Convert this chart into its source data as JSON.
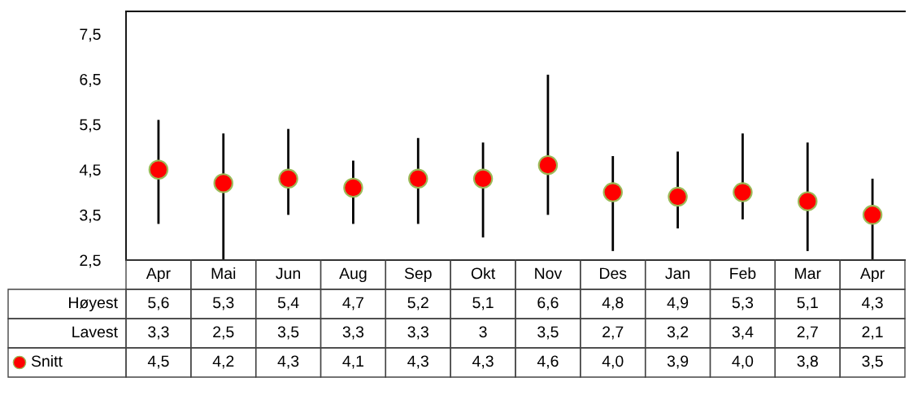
{
  "chart_data": {
    "type": "scatter",
    "categories": [
      "Apr",
      "Mai",
      "Jun",
      "Aug",
      "Sep",
      "Okt",
      "Nov",
      "Des",
      "Jan",
      "Feb",
      "Mar",
      "Apr"
    ],
    "series": [
      {
        "name": "Høyest",
        "type": "other",
        "values": [
          null,
          null,
          null,
          null,
          null,
          null,
          null,
          null,
          null,
          null,
          null,
          null
        ],
        "value_labels": [
          "5,6",
          "5,3",
          "5,4",
          "4,7",
          "5,2",
          "5,1",
          "6,6",
          "4,8",
          "4,9",
          "5,3",
          "5,1",
          "4,3"
        ]
      },
      {
        "name": "Lavest",
        "type": "other",
        "values": [
          null,
          null,
          null,
          null,
          null,
          null,
          null,
          null,
          null,
          null,
          null,
          null
        ],
        "value_labels": [
          "3,3",
          "2,5",
          "3,5",
          "3,3",
          "3,3",
          "3",
          "3,5",
          "2,7",
          "3,2",
          "3,4",
          "2,7",
          "2,1"
        ]
      },
      {
        "name": "Snitt",
        "color": "#ff0000",
        "values": [
          4.5,
          4.2,
          4.3,
          4.1,
          4.3,
          4.3,
          4.6,
          4.0,
          3.9,
          4.0,
          3.8,
          3.5
        ],
        "errors": [
          [
            3.3,
            5.6
          ],
          [
            2.5,
            5.3
          ],
          [
            3.5,
            5.4
          ],
          [
            3.3,
            4.7
          ],
          [
            3.3,
            5.2
          ],
          [
            3,
            5.1
          ],
          [
            3.5,
            6.6
          ],
          [
            2.7,
            4.8
          ],
          [
            3.2,
            4.9
          ],
          [
            3.4,
            5.3
          ],
          [
            2.7,
            5.1
          ],
          [
            2.1,
            4.3
          ]
        ],
        "value_labels": [
          "4,5",
          "4,2",
          "4,3",
          "4,1",
          "4,3",
          "4,3",
          "4,6",
          "4,0",
          "3,9",
          "4,0",
          "3,8",
          "3,5"
        ]
      }
    ],
    "ylim": [
      2.5,
      8.0
    ],
    "yticks": [
      {
        "value": 2.5,
        "label": "2,5"
      },
      {
        "value": 3.5,
        "label": "3,5"
      },
      {
        "value": 4.5,
        "label": "4,5"
      },
      {
        "value": 5.5,
        "label": "5,5"
      },
      {
        "value": 6.5,
        "label": "6,5"
      },
      {
        "value": 7.5,
        "label": "7,5"
      }
    ],
    "marker": "circle",
    "data_labels": true,
    "grid": false,
    "legend": "bottom left"
  }
}
